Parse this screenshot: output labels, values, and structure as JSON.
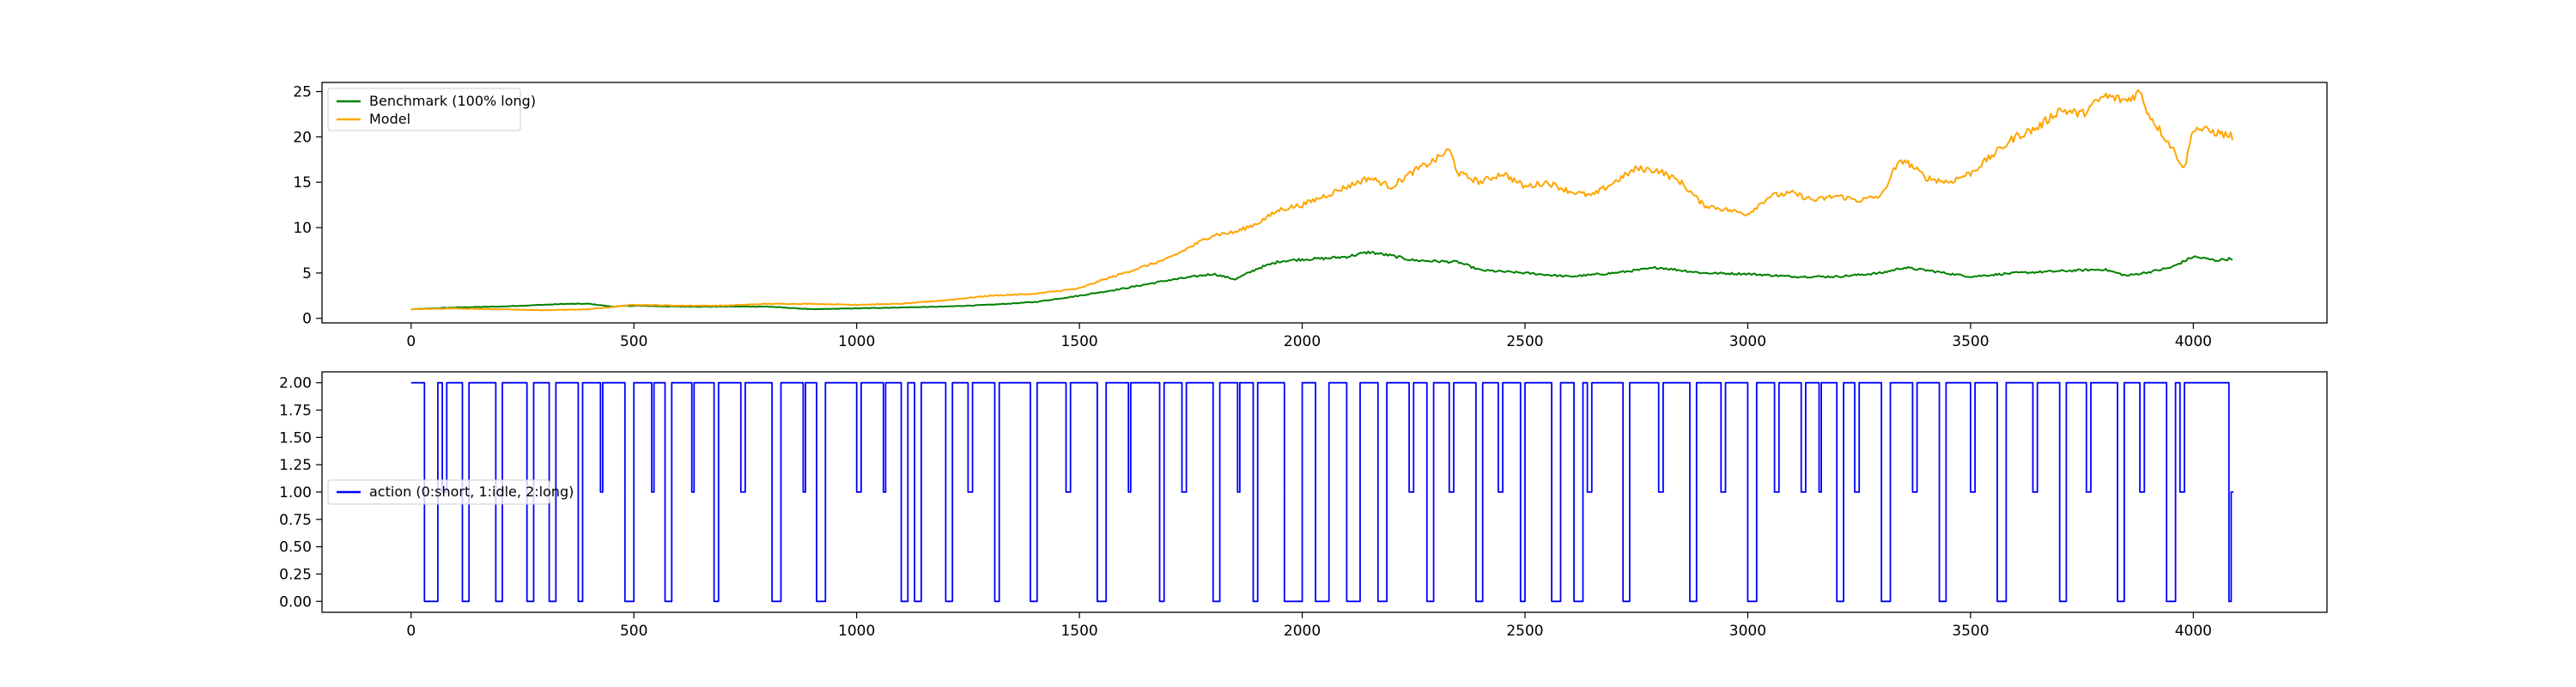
{
  "chart_data": [
    {
      "type": "line",
      "title": "",
      "xlabel": "",
      "ylabel": "",
      "xlim": [
        -200,
        4300
      ],
      "ylim": [
        -0.5,
        26
      ],
      "x_ticks": [
        0,
        500,
        1000,
        1500,
        2000,
        2500,
        3000,
        3500,
        4000
      ],
      "y_ticks": [
        0,
        5,
        10,
        15,
        20,
        25
      ],
      "grid": false,
      "legend_position": "top-left",
      "n_points": 4090,
      "series": [
        {
          "name": "Benchmark (100% long)",
          "color": "#008000",
          "points": [
            [
              0,
              1.0
            ],
            [
              100,
              1.2
            ],
            [
              200,
              1.3
            ],
            [
              300,
              1.5
            ],
            [
              350,
              1.6
            ],
            [
              400,
              1.6
            ],
            [
              450,
              1.3
            ],
            [
              500,
              1.4
            ],
            [
              600,
              1.3
            ],
            [
              700,
              1.3
            ],
            [
              800,
              1.3
            ],
            [
              900,
              1.0
            ],
            [
              1000,
              1.1
            ],
            [
              1100,
              1.2
            ],
            [
              1200,
              1.3
            ],
            [
              1300,
              1.5
            ],
            [
              1400,
              1.8
            ],
            [
              1500,
              2.5
            ],
            [
              1600,
              3.3
            ],
            [
              1700,
              4.2
            ],
            [
              1800,
              4.9
            ],
            [
              1850,
              4.3
            ],
            [
              1900,
              5.5
            ],
            [
              1950,
              6.3
            ],
            [
              2000,
              6.5
            ],
            [
              2050,
              6.6
            ],
            [
              2100,
              6.8
            ],
            [
              2150,
              7.3
            ],
            [
              2200,
              6.9
            ],
            [
              2250,
              6.4
            ],
            [
              2300,
              6.3
            ],
            [
              2350,
              6.2
            ],
            [
              2400,
              5.3
            ],
            [
              2500,
              5.0
            ],
            [
              2600,
              4.6
            ],
            [
              2700,
              5.0
            ],
            [
              2800,
              5.6
            ],
            [
              2900,
              5.0
            ],
            [
              3000,
              4.9
            ],
            [
              3100,
              4.6
            ],
            [
              3200,
              4.6
            ],
            [
              3300,
              5.0
            ],
            [
              3350,
              5.6
            ],
            [
              3400,
              5.3
            ],
            [
              3500,
              4.6
            ],
            [
              3600,
              5.0
            ],
            [
              3700,
              5.2
            ],
            [
              3800,
              5.4
            ],
            [
              3850,
              4.7
            ],
            [
              3900,
              5.1
            ],
            [
              3950,
              5.6
            ],
            [
              4000,
              6.8
            ],
            [
              4050,
              6.4
            ],
            [
              4090,
              6.6
            ]
          ]
        },
        {
          "name": "Model",
          "color": "#FFA500",
          "points": [
            [
              0,
              1.0
            ],
            [
              100,
              1.1
            ],
            [
              200,
              1.0
            ],
            [
              300,
              0.9
            ],
            [
              400,
              1.0
            ],
            [
              500,
              1.5
            ],
            [
              600,
              1.4
            ],
            [
              700,
              1.4
            ],
            [
              800,
              1.6
            ],
            [
              900,
              1.6
            ],
            [
              1000,
              1.5
            ],
            [
              1100,
              1.6
            ],
            [
              1200,
              2.0
            ],
            [
              1300,
              2.5
            ],
            [
              1400,
              2.7
            ],
            [
              1500,
              3.3
            ],
            [
              1550,
              4.2
            ],
            [
              1600,
              5.0
            ],
            [
              1700,
              6.6
            ],
            [
              1800,
              9.2
            ],
            [
              1850,
              9.5
            ],
            [
              1900,
              10.5
            ],
            [
              1950,
              12.0
            ],
            [
              2000,
              12.5
            ],
            [
              2050,
              13.5
            ],
            [
              2100,
              14.5
            ],
            [
              2150,
              15.5
            ],
            [
              2200,
              14.5
            ],
            [
              2250,
              16.2
            ],
            [
              2300,
              17.5
            ],
            [
              2330,
              18.6
            ],
            [
              2350,
              16.0
            ],
            [
              2400,
              15.0
            ],
            [
              2450,
              16.0
            ],
            [
              2500,
              14.5
            ],
            [
              2550,
              15.0
            ],
            [
              2600,
              14.0
            ],
            [
              2650,
              13.5
            ],
            [
              2700,
              15.0
            ],
            [
              2750,
              16.5
            ],
            [
              2800,
              16.3
            ],
            [
              2850,
              15.0
            ],
            [
              2900,
              12.5
            ],
            [
              2950,
              12.0
            ],
            [
              3000,
              11.5
            ],
            [
              3050,
              13.5
            ],
            [
              3100,
              13.8
            ],
            [
              3150,
              13.0
            ],
            [
              3200,
              13.5
            ],
            [
              3250,
              13.0
            ],
            [
              3300,
              13.5
            ],
            [
              3330,
              16.5
            ],
            [
              3350,
              17.5
            ],
            [
              3400,
              15.5
            ],
            [
              3450,
              15.0
            ],
            [
              3500,
              16.0
            ],
            [
              3550,
              18.0
            ],
            [
              3600,
              20.0
            ],
            [
              3650,
              21.0
            ],
            [
              3700,
              23.0
            ],
            [
              3750,
              22.5
            ],
            [
              3800,
              24.5
            ],
            [
              3850,
              24.0
            ],
            [
              3880,
              25.0
            ],
            [
              3900,
              22.5
            ],
            [
              3950,
              19.0
            ],
            [
              3980,
              16.5
            ],
            [
              4000,
              21.0
            ],
            [
              4050,
              20.5
            ],
            [
              4090,
              20.0
            ]
          ]
        }
      ]
    },
    {
      "type": "line",
      "title": "",
      "xlabel": "",
      "ylabel": "",
      "xlim": [
        -200,
        4300
      ],
      "ylim": [
        -0.1,
        2.1
      ],
      "x_ticks": [
        0,
        500,
        1000,
        1500,
        2000,
        2500,
        3000,
        3500,
        4000
      ],
      "y_ticks": [
        0.0,
        0.25,
        0.5,
        0.75,
        1.0,
        1.25,
        1.5,
        1.75,
        2.0
      ],
      "y_tick_labels": [
        "0.00",
        "0.25",
        "0.50",
        "0.75",
        "1.00",
        "1.25",
        "1.50",
        "1.75",
        "2.00"
      ],
      "grid": false,
      "legend_position": "center-left",
      "n_points": 4090,
      "series": [
        {
          "name": "action (0:short, 1:idle, 2:long)",
          "color": "#0000FF",
          "step": true,
          "segments": [
            [
              0,
              2
            ],
            [
              30,
              0
            ],
            [
              60,
              2
            ],
            [
              70,
              1
            ],
            [
              80,
              2
            ],
            [
              115,
              0
            ],
            [
              130,
              2
            ],
            [
              190,
              0
            ],
            [
              205,
              2
            ],
            [
              260,
              0
            ],
            [
              275,
              2
            ],
            [
              310,
              0
            ],
            [
              325,
              2
            ],
            [
              375,
              0
            ],
            [
              385,
              2
            ],
            [
              425,
              1
            ],
            [
              430,
              2
            ],
            [
              480,
              0
            ],
            [
              500,
              2
            ],
            [
              540,
              1
            ],
            [
              545,
              2
            ],
            [
              570,
              0
            ],
            [
              585,
              2
            ],
            [
              630,
              1
            ],
            [
              635,
              2
            ],
            [
              680,
              0
            ],
            [
              690,
              2
            ],
            [
              740,
              1
            ],
            [
              750,
              2
            ],
            [
              810,
              0
            ],
            [
              830,
              2
            ],
            [
              880,
              1
            ],
            [
              885,
              2
            ],
            [
              910,
              0
            ],
            [
              930,
              2
            ],
            [
              1000,
              1
            ],
            [
              1010,
              2
            ],
            [
              1060,
              1
            ],
            [
              1065,
              2
            ],
            [
              1100,
              0
            ],
            [
              1115,
              2
            ],
            [
              1130,
              0
            ],
            [
              1145,
              2
            ],
            [
              1200,
              0
            ],
            [
              1215,
              2
            ],
            [
              1250,
              1
            ],
            [
              1260,
              2
            ],
            [
              1310,
              0
            ],
            [
              1320,
              2
            ],
            [
              1390,
              0
            ],
            [
              1405,
              2
            ],
            [
              1470,
              1
            ],
            [
              1480,
              2
            ],
            [
              1540,
              0
            ],
            [
              1560,
              2
            ],
            [
              1610,
              1
            ],
            [
              1615,
              2
            ],
            [
              1680,
              0
            ],
            [
              1690,
              2
            ],
            [
              1730,
              1
            ],
            [
              1740,
              2
            ],
            [
              1800,
              0
            ],
            [
              1815,
              2
            ],
            [
              1855,
              1
            ],
            [
              1860,
              2
            ],
            [
              1890,
              0
            ],
            [
              1900,
              2
            ],
            [
              1960,
              0
            ],
            [
              2000,
              2
            ],
            [
              2030,
              0
            ],
            [
              2060,
              2
            ],
            [
              2100,
              0
            ],
            [
              2130,
              2
            ],
            [
              2170,
              0
            ],
            [
              2190,
              2
            ],
            [
              2240,
              1
            ],
            [
              2250,
              2
            ],
            [
              2280,
              0
            ],
            [
              2295,
              2
            ],
            [
              2330,
              1
            ],
            [
              2340,
              2
            ],
            [
              2390,
              0
            ],
            [
              2405,
              2
            ],
            [
              2440,
              1
            ],
            [
              2450,
              2
            ],
            [
              2490,
              0
            ],
            [
              2500,
              2
            ],
            [
              2560,
              0
            ],
            [
              2580,
              2
            ],
            [
              2610,
              0
            ],
            [
              2630,
              2
            ],
            [
              2640,
              1
            ],
            [
              2650,
              2
            ],
            [
              2720,
              0
            ],
            [
              2735,
              2
            ],
            [
              2800,
              1
            ],
            [
              2810,
              2
            ],
            [
              2870,
              0
            ],
            [
              2885,
              2
            ],
            [
              2940,
              1
            ],
            [
              2950,
              2
            ],
            [
              3000,
              0
            ],
            [
              3020,
              2
            ],
            [
              3060,
              1
            ],
            [
              3070,
              2
            ],
            [
              3120,
              1
            ],
            [
              3130,
              2
            ],
            [
              3160,
              1
            ],
            [
              3165,
              2
            ],
            [
              3200,
              0
            ],
            [
              3215,
              2
            ],
            [
              3240,
              1
            ],
            [
              3250,
              2
            ],
            [
              3300,
              0
            ],
            [
              3320,
              2
            ],
            [
              3370,
              1
            ],
            [
              3380,
              2
            ],
            [
              3430,
              0
            ],
            [
              3445,
              2
            ],
            [
              3500,
              1
            ],
            [
              3510,
              2
            ],
            [
              3560,
              0
            ],
            [
              3580,
              2
            ],
            [
              3640,
              1
            ],
            [
              3650,
              2
            ],
            [
              3700,
              0
            ],
            [
              3715,
              2
            ],
            [
              3760,
              1
            ],
            [
              3770,
              2
            ],
            [
              3830,
              0
            ],
            [
              3845,
              2
            ],
            [
              3880,
              1
            ],
            [
              3890,
              2
            ],
            [
              3940,
              0
            ],
            [
              3960,
              2
            ],
            [
              3970,
              1
            ],
            [
              3980,
              2
            ],
            [
              4080,
              0
            ],
            [
              4085,
              1
            ],
            [
              4090,
              1
            ]
          ]
        }
      ]
    }
  ]
}
